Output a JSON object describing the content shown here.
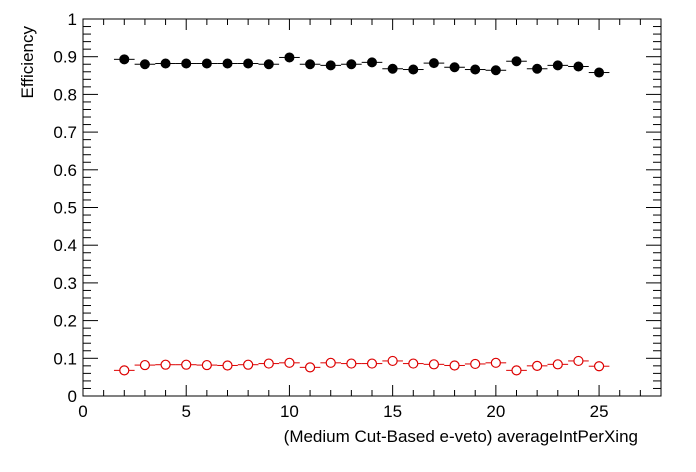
{
  "chart_data": {
    "type": "scatter",
    "xlabel": "(Medium Cut-Based e-veto) averageIntPerXing",
    "ylabel": "Efficiency",
    "xlim": [
      0,
      28
    ],
    "ylim": [
      0,
      1
    ],
    "x_ticks": [
      0,
      5,
      10,
      15,
      20,
      25
    ],
    "y_ticks": [
      0,
      0.1,
      0.2,
      0.3,
      0.4,
      0.5,
      0.6,
      0.7,
      0.8,
      0.9,
      1
    ],
    "x_tick_labels": [
      "0",
      "5",
      "10",
      "15",
      "20",
      "25"
    ],
    "y_tick_labels": [
      "0",
      "0.1",
      "0.2",
      "0.3",
      "0.4",
      "0.5",
      "0.6",
      "0.7",
      "0.8",
      "0.9",
      "1"
    ],
    "grid": false,
    "x_bin_halfwidth": 0.5,
    "series": [
      {
        "marker": "filled-circle",
        "color": "#000000",
        "x": [
          2,
          3,
          4,
          5,
          6,
          7,
          8,
          9,
          10,
          11,
          12,
          13,
          14,
          15,
          16,
          17,
          18,
          19,
          20,
          21,
          22,
          23,
          24,
          25
        ],
        "y": [
          0.893,
          0.88,
          0.882,
          0.882,
          0.882,
          0.882,
          0.882,
          0.88,
          0.898,
          0.88,
          0.877,
          0.88,
          0.885,
          0.868,
          0.866,
          0.883,
          0.872,
          0.866,
          0.864,
          0.888,
          0.868,
          0.877,
          0.874,
          0.858
        ],
        "yerr": [
          0.005,
          0.004,
          0.003,
          0.003,
          0.003,
          0.003,
          0.003,
          0.003,
          0.003,
          0.003,
          0.003,
          0.003,
          0.003,
          0.003,
          0.003,
          0.003,
          0.003,
          0.004,
          0.004,
          0.004,
          0.004,
          0.005,
          0.005,
          0.006
        ]
      },
      {
        "marker": "open-circle",
        "color": "#dd0000",
        "x": [
          2,
          3,
          4,
          5,
          6,
          7,
          8,
          9,
          10,
          11,
          12,
          13,
          14,
          15,
          16,
          17,
          18,
          19,
          20,
          21,
          22,
          23,
          24,
          25
        ],
        "y": [
          0.068,
          0.082,
          0.083,
          0.083,
          0.082,
          0.081,
          0.083,
          0.086,
          0.088,
          0.076,
          0.088,
          0.086,
          0.086,
          0.093,
          0.086,
          0.084,
          0.081,
          0.085,
          0.088,
          0.068,
          0.08,
          0.084,
          0.093,
          0.079
        ],
        "yerr": [
          0.004,
          0.003,
          0.003,
          0.003,
          0.002,
          0.002,
          0.002,
          0.002,
          0.002,
          0.002,
          0.002,
          0.002,
          0.002,
          0.002,
          0.002,
          0.002,
          0.002,
          0.002,
          0.003,
          0.003,
          0.003,
          0.003,
          0.004,
          0.005
        ]
      }
    ]
  }
}
